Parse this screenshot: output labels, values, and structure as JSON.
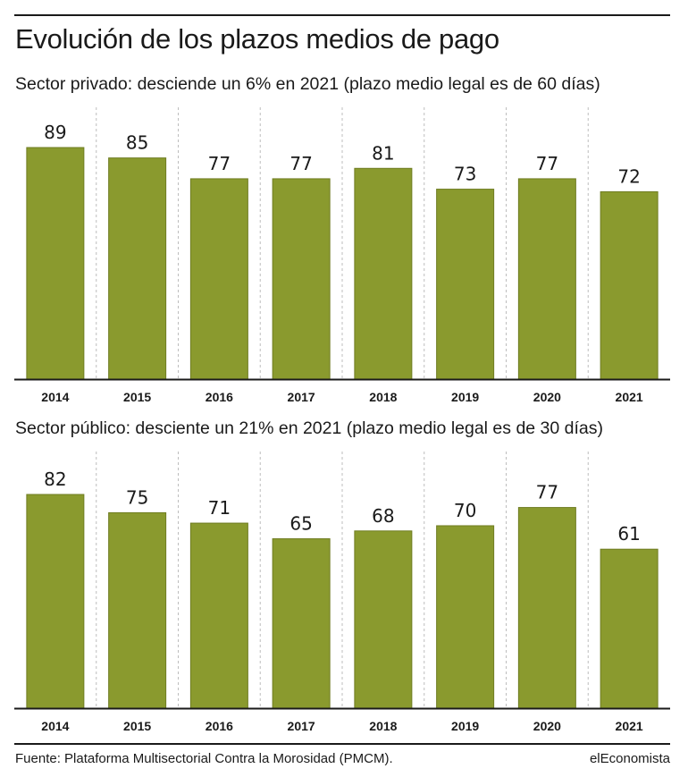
{
  "title": "Evolución de los plazos medios de pago",
  "source": "Fuente: Plataforma Multisectorial Contra la Morosidad (PMCM).",
  "brand": "elEconomista",
  "colors": {
    "bar": "#8a9a2e",
    "bar_stroke": "#6f7c22",
    "gridline": "#bdbdbd",
    "axis": "#1a1a1a"
  },
  "chart_data": [
    {
      "type": "bar",
      "title": "Sector privado: desciende un 6% en 2021 (plazo medio legal es de 60 días)",
      "categories": [
        "2014",
        "2015",
        "2016",
        "2017",
        "2018",
        "2019",
        "2020",
        "2021"
      ],
      "values": [
        89,
        85,
        77,
        77,
        81,
        73,
        77,
        72
      ],
      "ylim": [
        0,
        89
      ],
      "grid": "vertical-dashed"
    },
    {
      "type": "bar",
      "title": "Sector público: desciente un 21% en 2021 (plazo medio legal es de 30 días)",
      "categories": [
        "2014",
        "2015",
        "2016",
        "2017",
        "2018",
        "2019",
        "2020",
        "2021"
      ],
      "values": [
        82,
        75,
        71,
        65,
        68,
        70,
        77,
        61
      ],
      "ylim": [
        0,
        82
      ],
      "grid": "vertical-dashed"
    }
  ]
}
